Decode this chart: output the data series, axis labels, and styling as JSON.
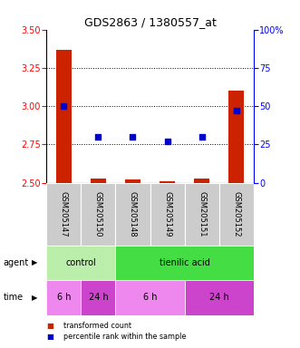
{
  "title": "GDS2863 / 1380557_at",
  "samples": [
    "GSM205147",
    "GSM205150",
    "GSM205148",
    "GSM205149",
    "GSM205151",
    "GSM205152"
  ],
  "bar_values": [
    3.37,
    2.53,
    2.52,
    2.51,
    2.53,
    3.1
  ],
  "bar_bottom": 2.5,
  "percentile_values": [
    50,
    30,
    30,
    27,
    30,
    47
  ],
  "ylim_left": [
    2.5,
    3.5
  ],
  "ylim_right": [
    0,
    100
  ],
  "yticks_left": [
    2.5,
    2.75,
    3.0,
    3.25,
    3.5
  ],
  "yticks_right": [
    0,
    25,
    50,
    75,
    100
  ],
  "bar_color": "#cc2200",
  "dot_color": "#0000cc",
  "dotted_lines": [
    2.75,
    3.0,
    3.25
  ],
  "agent_labels": [
    {
      "label": "control",
      "start": 0,
      "end": 2,
      "color": "#bbeeaa"
    },
    {
      "label": "tienilic acid",
      "start": 2,
      "end": 6,
      "color": "#44dd44"
    }
  ],
  "time_labels": [
    {
      "label": "6 h",
      "start": 0,
      "end": 1,
      "color": "#ee88ee"
    },
    {
      "label": "24 h",
      "start": 1,
      "end": 2,
      "color": "#cc44cc"
    },
    {
      "label": "6 h",
      "start": 2,
      "end": 4,
      "color": "#ee88ee"
    },
    {
      "label": "24 h",
      "start": 4,
      "end": 6,
      "color": "#cc44cc"
    }
  ],
  "legend_bar_color": "#cc2200",
  "legend_dot_color": "#0000cc",
  "legend_bar_label": "transformed count",
  "legend_dot_label": "percentile rank within the sample",
  "background_color": "#ffffff",
  "plot_bg_color": "#ffffff",
  "sample_bg_color": "#cccccc",
  "title_fontsize": 9,
  "tick_fontsize": 7,
  "label_fontsize": 7,
  "sample_fontsize": 6,
  "annotation_fontsize": 7
}
